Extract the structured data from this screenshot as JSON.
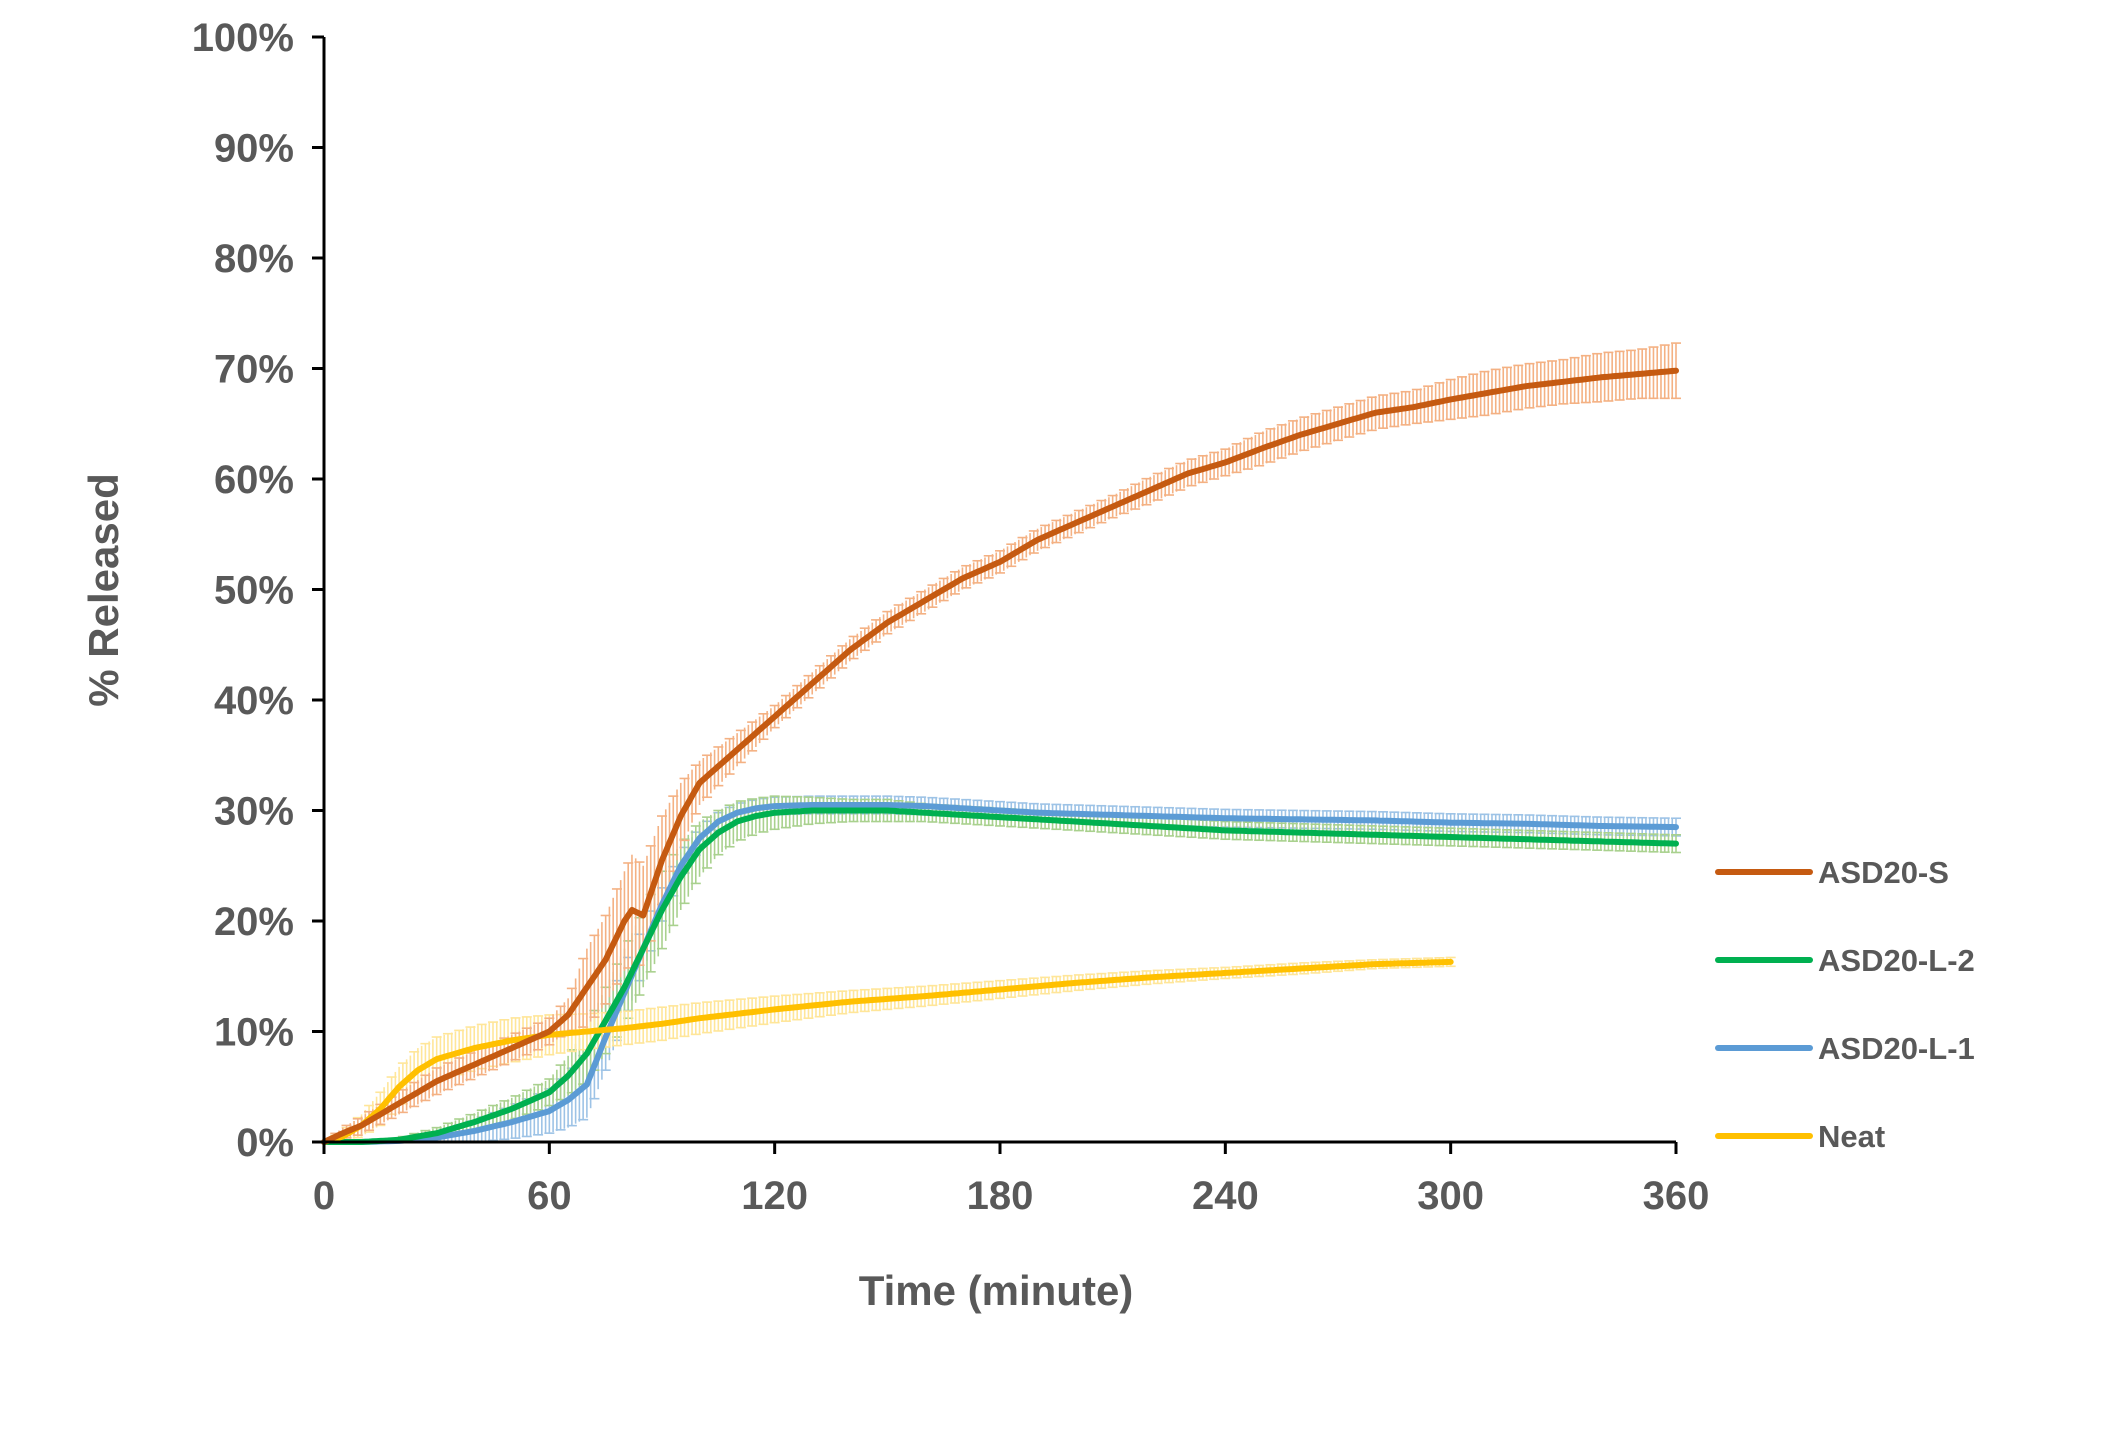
{
  "chart_data": {
    "type": "line",
    "title": "",
    "xlabel": "Time (minute)",
    "ylabel": "% Released",
    "xlim": [
      0,
      360
    ],
    "ylim": [
      0,
      1
    ],
    "xticks": [
      0,
      60,
      120,
      180,
      240,
      300,
      360
    ],
    "xtick_labels": [
      "0",
      "60",
      "120",
      "180",
      "240",
      "300",
      "360"
    ],
    "yticks": [
      0,
      0.1,
      0.2,
      0.3,
      0.4,
      0.5,
      0.6,
      0.7,
      0.8,
      0.9,
      1.0
    ],
    "ytick_labels": [
      "0%",
      "10%",
      "20%",
      "30%",
      "40%",
      "50%",
      "60%",
      "70%",
      "80%",
      "90%",
      "100%"
    ],
    "grid": false,
    "legend_position": "right",
    "series": [
      {
        "name": "ASD20-S",
        "color": "#C55A11",
        "error_color": "#F4B183",
        "x": [
          0,
          5,
          10,
          20,
          30,
          40,
          50,
          60,
          65,
          70,
          75,
          80,
          82,
          85,
          90,
          95,
          100,
          110,
          120,
          130,
          140,
          150,
          160,
          170,
          180,
          190,
          200,
          210,
          220,
          230,
          240,
          250,
          260,
          270,
          280,
          290,
          300,
          310,
          320,
          330,
          340,
          350,
          360
        ],
        "y": [
          0.0,
          0.008,
          0.015,
          0.035,
          0.055,
          0.07,
          0.085,
          0.1,
          0.115,
          0.14,
          0.165,
          0.2,
          0.21,
          0.205,
          0.255,
          0.295,
          0.325,
          0.355,
          0.385,
          0.415,
          0.445,
          0.47,
          0.49,
          0.51,
          0.525,
          0.545,
          0.56,
          0.575,
          0.59,
          0.605,
          0.615,
          0.628,
          0.64,
          0.65,
          0.66,
          0.665,
          0.672,
          0.678,
          0.684,
          0.688,
          0.692,
          0.695,
          0.698
        ],
        "error": [
          0.0,
          0.005,
          0.008,
          0.01,
          0.012,
          0.012,
          0.012,
          0.012,
          0.015,
          0.035,
          0.04,
          0.045,
          0.05,
          0.045,
          0.04,
          0.03,
          0.02,
          0.015,
          0.01,
          0.01,
          0.01,
          0.01,
          0.01,
          0.01,
          0.01,
          0.01,
          0.01,
          0.01,
          0.012,
          0.012,
          0.012,
          0.015,
          0.015,
          0.015,
          0.015,
          0.015,
          0.018,
          0.02,
          0.02,
          0.02,
          0.022,
          0.022,
          0.025
        ]
      },
      {
        "name": "ASD20-L-2",
        "color": "#00B050",
        "error_color": "#A9D18E",
        "x": [
          0,
          10,
          20,
          30,
          40,
          50,
          60,
          65,
          70,
          75,
          80,
          85,
          90,
          95,
          100,
          105,
          110,
          115,
          120,
          130,
          140,
          150,
          160,
          170,
          180,
          190,
          200,
          210,
          220,
          230,
          240,
          260,
          280,
          300,
          320,
          340,
          360
        ],
        "y": [
          0.0,
          0.0,
          0.002,
          0.008,
          0.018,
          0.03,
          0.045,
          0.06,
          0.08,
          0.11,
          0.14,
          0.175,
          0.21,
          0.24,
          0.265,
          0.28,
          0.29,
          0.295,
          0.298,
          0.3,
          0.3,
          0.3,
          0.298,
          0.296,
          0.294,
          0.292,
          0.29,
          0.288,
          0.286,
          0.284,
          0.282,
          0.28,
          0.278,
          0.276,
          0.274,
          0.272,
          0.27
        ],
        "error": [
          0.0,
          0.0,
          0.002,
          0.005,
          0.008,
          0.01,
          0.012,
          0.018,
          0.025,
          0.03,
          0.035,
          0.035,
          0.035,
          0.03,
          0.025,
          0.02,
          0.018,
          0.016,
          0.015,
          0.012,
          0.01,
          0.01,
          0.008,
          0.008,
          0.008,
          0.008,
          0.008,
          0.008,
          0.008,
          0.008,
          0.008,
          0.008,
          0.008,
          0.008,
          0.008,
          0.008,
          0.008
        ]
      },
      {
        "name": "ASD20-L-1",
        "color": "#5B9BD5",
        "error_color": "#9DC3E6",
        "x": [
          0,
          10,
          20,
          30,
          40,
          50,
          60,
          65,
          70,
          75,
          80,
          85,
          90,
          95,
          100,
          105,
          110,
          115,
          120,
          130,
          140,
          150,
          160,
          170,
          180,
          190,
          200,
          210,
          220,
          230,
          240,
          260,
          280,
          300,
          320,
          340,
          360
        ],
        "y": [
          0.0,
          0.0,
          0.001,
          0.004,
          0.01,
          0.018,
          0.028,
          0.038,
          0.052,
          0.095,
          0.135,
          0.175,
          0.215,
          0.25,
          0.275,
          0.29,
          0.298,
          0.302,
          0.304,
          0.305,
          0.305,
          0.305,
          0.304,
          0.302,
          0.3,
          0.298,
          0.297,
          0.296,
          0.295,
          0.294,
          0.293,
          0.292,
          0.291,
          0.289,
          0.288,
          0.286,
          0.285
        ],
        "error": [
          0.0,
          0.0,
          0.002,
          0.005,
          0.01,
          0.015,
          0.02,
          0.025,
          0.03,
          0.03,
          0.025,
          0.02,
          0.015,
          0.012,
          0.01,
          0.008,
          0.008,
          0.008,
          0.008,
          0.008,
          0.008,
          0.008,
          0.008,
          0.008,
          0.008,
          0.008,
          0.008,
          0.008,
          0.008,
          0.008,
          0.008,
          0.008,
          0.008,
          0.008,
          0.008,
          0.008,
          0.008
        ]
      },
      {
        "name": "Neat",
        "color": "#FFC000",
        "error_color": "#FFE699",
        "x": [
          0,
          5,
          10,
          15,
          20,
          25,
          30,
          40,
          50,
          60,
          70,
          80,
          90,
          100,
          120,
          140,
          160,
          180,
          200,
          220,
          240,
          260,
          280,
          300
        ],
        "y": [
          0.0,
          0.005,
          0.015,
          0.03,
          0.05,
          0.065,
          0.075,
          0.085,
          0.092,
          0.097,
          0.1,
          0.103,
          0.107,
          0.112,
          0.12,
          0.127,
          0.132,
          0.138,
          0.144,
          0.149,
          0.153,
          0.157,
          0.161,
          0.163
        ],
        "error": [
          0.0,
          0.005,
          0.01,
          0.015,
          0.018,
          0.02,
          0.02,
          0.02,
          0.02,
          0.018,
          0.016,
          0.015,
          0.015,
          0.014,
          0.012,
          0.01,
          0.009,
          0.008,
          0.007,
          0.006,
          0.005,
          0.005,
          0.004,
          0.004
        ]
      }
    ]
  }
}
